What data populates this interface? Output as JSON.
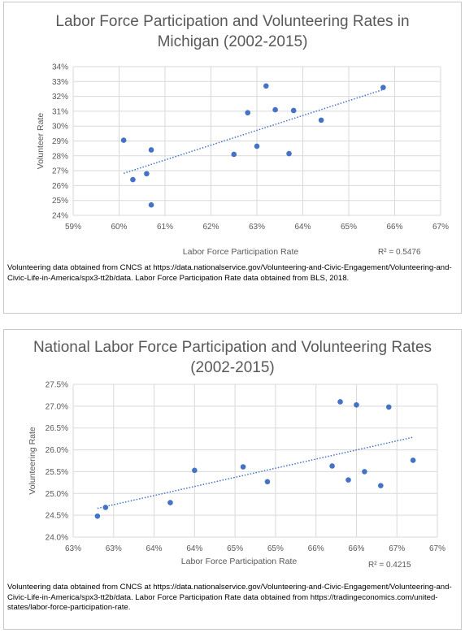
{
  "colors": {
    "point": "#4472C4",
    "trend": "#4472C4",
    "grid": "#d9d9d9",
    "axis": "#bfbfbf"
  },
  "chart_data": [
    {
      "type": "scatter",
      "title_lines": [
        "Labor Force Participation and Volunteering Rates in",
        "Michigan (2002-2015)"
      ],
      "xlabel": "Labor Force Participation Rate",
      "ylabel": "Volunteer Rate",
      "xlim": [
        59,
        67
      ],
      "ylim": [
        24,
        34
      ],
      "x_ticks": [
        59,
        60,
        61,
        62,
        63,
        64,
        65,
        66,
        67
      ],
      "x_tick_labels": [
        "59%",
        "60%",
        "61%",
        "62%",
        "63%",
        "64%",
        "65%",
        "66%",
        "67%"
      ],
      "y_ticks": [
        24,
        25,
        26,
        27,
        28,
        29,
        30,
        31,
        32,
        33,
        34
      ],
      "y_tick_labels": [
        "24%",
        "25%",
        "26%",
        "27%",
        "28%",
        "29%",
        "30%",
        "31%",
        "32%",
        "33%",
        "34%"
      ],
      "grid": true,
      "trendline": "linear",
      "r_squared": "R² = 0.5476",
      "points": [
        {
          "x": 60.1,
          "y": 29.05
        },
        {
          "x": 60.3,
          "y": 26.4
        },
        {
          "x": 60.6,
          "y": 26.8
        },
        {
          "x": 60.7,
          "y": 28.4
        },
        {
          "x": 60.7,
          "y": 24.7
        },
        {
          "x": 62.5,
          "y": 28.1
        },
        {
          "x": 62.8,
          "y": 30.9
        },
        {
          "x": 63.0,
          "y": 28.65
        },
        {
          "x": 63.2,
          "y": 32.7
        },
        {
          "x": 63.4,
          "y": 31.1
        },
        {
          "x": 63.7,
          "y": 28.15
        },
        {
          "x": 63.8,
          "y": 31.05
        },
        {
          "x": 64.4,
          "y": 30.4
        },
        {
          "x": 65.75,
          "y": 32.6
        }
      ],
      "caption": "Volunteering data obtained from CNCS at https://data.nationalservice.gov/Volunteering-and-Civic-Engagement/Volunteering-and-Civic-Life-in-America/spx3-tt2b/data. Labor Force Participation Rate data obtained from BLS, 2018."
    },
    {
      "type": "scatter",
      "title_lines": [
        "National Labor Force Participation and Volunteering Rates",
        "(2002-2015)"
      ],
      "xlabel": "Labor Force Participation Rate",
      "ylabel": "Volunteering Rate",
      "xlim": [
        62.5,
        67.0
      ],
      "ylim": [
        24.0,
        27.5
      ],
      "x_ticks": [
        62.5,
        63.0,
        63.5,
        64.0,
        64.5,
        65.0,
        65.5,
        66.0,
        66.5,
        67.0
      ],
      "x_tick_labels": [
        "63%",
        "63%",
        "64%",
        "64%",
        "65%",
        "65%",
        "66%",
        "66%",
        "67%",
        "67%"
      ],
      "y_ticks": [
        24.0,
        24.5,
        25.0,
        25.5,
        26.0,
        26.5,
        27.0,
        27.5
      ],
      "y_tick_labels": [
        "24.0%",
        "24.5%",
        "25.0%",
        "25.5%",
        "26.0%",
        "26.5%",
        "27.0%",
        "27.5%"
      ],
      "grid": true,
      "trendline": "linear",
      "r_squared": "R² = 0.4215",
      "points": [
        {
          "x": 62.8,
          "y": 24.48
        },
        {
          "x": 62.9,
          "y": 24.68
        },
        {
          "x": 63.7,
          "y": 24.79
        },
        {
          "x": 64.0,
          "y": 25.53
        },
        {
          "x": 64.6,
          "y": 25.61
        },
        {
          "x": 64.9,
          "y": 25.27
        },
        {
          "x": 65.7,
          "y": 25.63
        },
        {
          "x": 65.8,
          "y": 27.1
        },
        {
          "x": 65.9,
          "y": 25.31
        },
        {
          "x": 66.0,
          "y": 27.03
        },
        {
          "x": 66.1,
          "y": 25.5
        },
        {
          "x": 66.3,
          "y": 25.18
        },
        {
          "x": 66.4,
          "y": 26.98
        },
        {
          "x": 66.7,
          "y": 25.76
        }
      ],
      "caption": "Volunteering data obtained from CNCS at https://data.nationalservice.gov/Volunteering-and-Civic-Engagement/Volunteering-and-Civic-Life-in-America/spx3-tt2b/data. Labor Force Participation Rate data obtained from https://tradingeconomics.com/united-states/labor-force-participation-rate."
    }
  ]
}
